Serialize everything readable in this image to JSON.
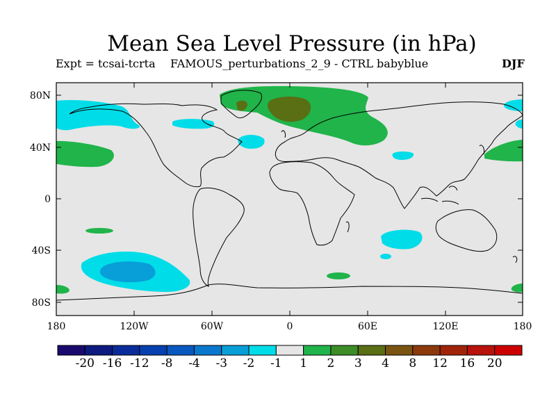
{
  "title": "Mean Sea Level Pressure (in hPa)",
  "subtitle_left": "Expt = tcsai-tcrta",
  "subtitle_center": "FAMOUS_perturbations_2_9 - CTRL babyblue",
  "season": "DJF",
  "lat_labels": [
    "80N",
    "40N",
    "0",
    "40S",
    "80S"
  ],
  "lon_labels": [
    "180",
    "120W",
    "60W",
    "0",
    "60E",
    "120E",
    "180"
  ],
  "colorbar": {
    "colors": [
      "#1a0a6e",
      "#0d1a80",
      "#0a2c9a",
      "#0640ae",
      "#0858c0",
      "#0a78cc",
      "#089ed8",
      "#00dde8",
      "#e6e6e6",
      "#20b44a",
      "#3c8c28",
      "#5a6e14",
      "#7a5410",
      "#8c3a0c",
      "#a0240a",
      "#b8120a",
      "#cc0000"
    ],
    "labels": [
      "-20",
      "-16",
      "-12",
      "-8",
      "-4",
      "-3",
      "-2",
      "-1",
      "1",
      "2",
      "3",
      "4",
      "8",
      "12",
      "16",
      "20"
    ]
  },
  "colors": {
    "ocean_land_bg": "#e6e6e6",
    "neg_light": "#00dde8",
    "neg_mid": "#089ed8",
    "pos_light": "#20b44a",
    "pos_dark": "#5a6e14",
    "coast": "#000000"
  }
}
